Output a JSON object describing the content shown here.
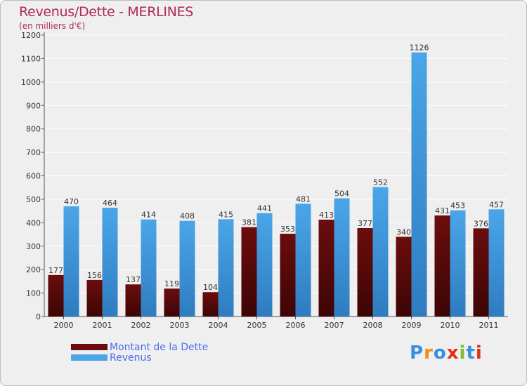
{
  "chart_data": {
    "type": "bar",
    "title": "Revenus/Dette - MERLINES",
    "subtitle": "(en milliers d'€)",
    "categories": [
      "2000",
      "2001",
      "2002",
      "2003",
      "2004",
      "2005",
      "2006",
      "2007",
      "2008",
      "2009",
      "2010",
      "2011"
    ],
    "series": [
      {
        "name": "Montant de la Dette",
        "color": "#6b0d0d",
        "values": [
          177,
          156,
          137,
          119,
          104,
          381,
          353,
          413,
          377,
          340,
          431,
          376
        ]
      },
      {
        "name": "Revenus",
        "color": "#4aa6e8",
        "values": [
          470,
          464,
          414,
          408,
          415,
          441,
          481,
          504,
          552,
          1126,
          453,
          457
        ]
      }
    ],
    "ylim": [
      0,
      1200
    ],
    "yticks": [
      0,
      100,
      200,
      300,
      400,
      500,
      600,
      700,
      800,
      900,
      1000,
      1100,
      1200
    ],
    "grid": true,
    "legend_position": "bottom-left"
  },
  "logo": {
    "letters": [
      "P",
      "r",
      "o",
      "x",
      "i",
      "t",
      "i"
    ],
    "colors": [
      "#3a8ee0",
      "#f08c1a",
      "#3a8ee0",
      "#e0301a",
      "#7bbf2a",
      "#3a8ee0",
      "#e0301a"
    ]
  }
}
